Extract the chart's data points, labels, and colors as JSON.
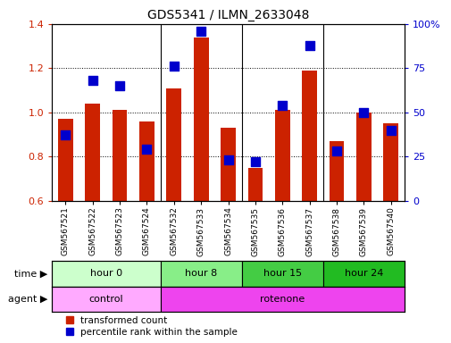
{
  "title": "GDS5341 / ILMN_2633048",
  "samples": [
    "GSM567521",
    "GSM567522",
    "GSM567523",
    "GSM567524",
    "GSM567532",
    "GSM567533",
    "GSM567534",
    "GSM567535",
    "GSM567536",
    "GSM567537",
    "GSM567538",
    "GSM567539",
    "GSM567540"
  ],
  "red_values": [
    0.97,
    1.04,
    1.01,
    0.96,
    1.11,
    1.34,
    0.93,
    0.75,
    1.01,
    1.19,
    0.87,
    1.0,
    0.95
  ],
  "blue_percentile": [
    37,
    68,
    65,
    29,
    76,
    96,
    23,
    22,
    54,
    88,
    28,
    50,
    40
  ],
  "ylim_left": [
    0.6,
    1.4
  ],
  "ylim_right": [
    0,
    100
  ],
  "yticks_left": [
    0.6,
    0.8,
    1.0,
    1.2,
    1.4
  ],
  "yticks_right": [
    0,
    25,
    50,
    75,
    100
  ],
  "ytick_labels_right": [
    "0",
    "25",
    "50",
    "75",
    "100%"
  ],
  "bar_color": "#cc2200",
  "blue_color": "#0000cc",
  "time_groups": [
    {
      "label": "hour 0",
      "start": 0,
      "end": 4,
      "color": "#ccffcc"
    },
    {
      "label": "hour 8",
      "start": 4,
      "end": 7,
      "color": "#88ee88"
    },
    {
      "label": "hour 15",
      "start": 7,
      "end": 10,
      "color": "#44cc44"
    },
    {
      "label": "hour 24",
      "start": 10,
      "end": 13,
      "color": "#22bb22"
    }
  ],
  "agent_groups": [
    {
      "label": "control",
      "start": 0,
      "end": 4,
      "color": "#ffaaff"
    },
    {
      "label": "rotenone",
      "start": 4,
      "end": 13,
      "color": "#ee44ee"
    }
  ],
  "legend_red_label": "transformed count",
  "legend_blue_label": "percentile rank within the sample",
  "time_label": "time",
  "agent_label": "agent",
  "bar_width": 0.55,
  "blue_marker_size": 55
}
